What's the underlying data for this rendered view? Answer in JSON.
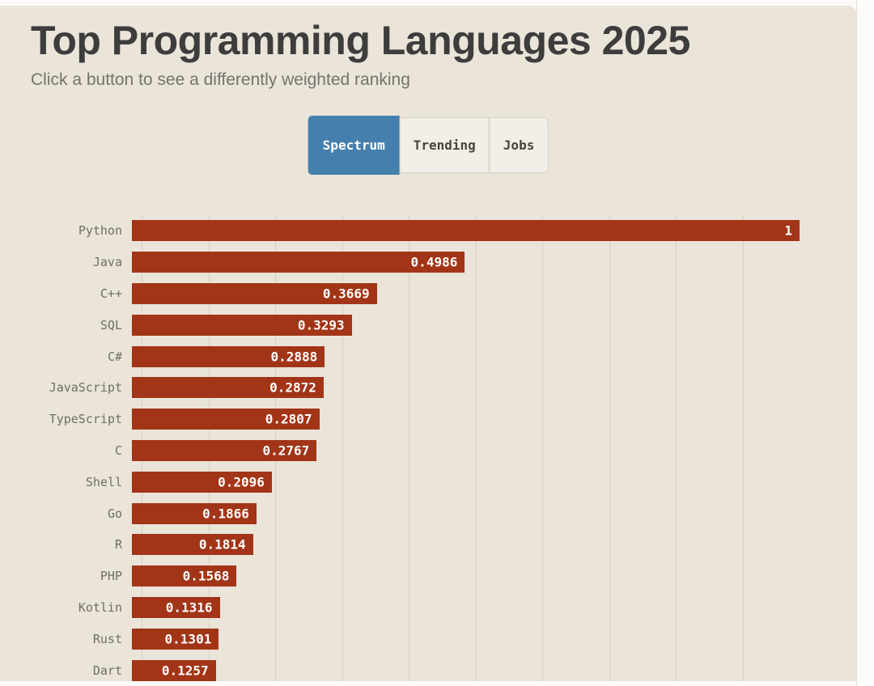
{
  "page": {
    "title": "Top Programming Languages 2025",
    "subtitle": "Click a button to see a differently weighted ranking"
  },
  "buttons": [
    {
      "label": "Spectrum",
      "active": true
    },
    {
      "label": "Trending",
      "active": false
    },
    {
      "label": "Jobs",
      "active": false
    }
  ],
  "colors": {
    "background": "#eae4d9",
    "bar": "#a23517",
    "active_button": "#447fad",
    "gridline": "#d8d1c3",
    "value_text": "#ffffff"
  },
  "chart_data": {
    "type": "bar",
    "orientation": "horizontal",
    "title": "Top Programming Languages 2025",
    "categories": [
      "Python",
      "Java",
      "C++",
      "SQL",
      "C#",
      "JavaScript",
      "TypeScript",
      "C",
      "Shell",
      "Go",
      "R",
      "PHP",
      "Kotlin",
      "Rust",
      "Dart"
    ],
    "values": [
      1,
      0.4986,
      0.3669,
      0.3293,
      0.2888,
      0.2872,
      0.2807,
      0.2767,
      0.2096,
      0.1866,
      0.1814,
      0.1568,
      0.1316,
      0.1301,
      0.1257
    ],
    "value_labels": [
      "1",
      "0.4986",
      "0.3669",
      "0.3293",
      "0.2888",
      "0.2872",
      "0.2807",
      "0.2767",
      "0.2096",
      "0.1866",
      "0.1814",
      "0.1568",
      "0.1316",
      "0.1301",
      "0.1257"
    ],
    "xlabel": "",
    "ylabel": "",
    "xlim": [
      0,
      1
    ],
    "grid": true,
    "gridline_interval": 0.1,
    "legend": "none"
  }
}
